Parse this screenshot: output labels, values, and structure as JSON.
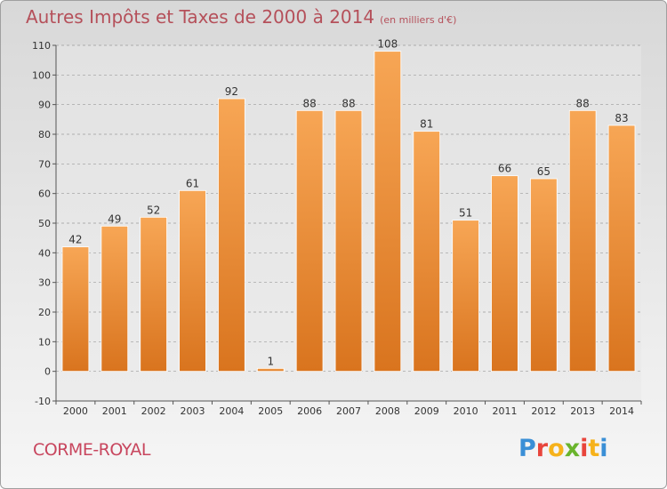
{
  "chart_data": {
    "type": "bar",
    "title": "Autres Impôts et Taxes de 2000 à 2014",
    "subtitle": "(en milliers d'€)",
    "categories": [
      "2000",
      "2001",
      "2002",
      "2003",
      "2004",
      "2005",
      "2006",
      "2007",
      "2008",
      "2009",
      "2010",
      "2011",
      "2012",
      "2013",
      "2014"
    ],
    "values": [
      42,
      49,
      52,
      61,
      92,
      1,
      88,
      88,
      108,
      81,
      51,
      66,
      65,
      88,
      83
    ],
    "ylim": [
      -10,
      110
    ],
    "yticks": [
      -10,
      0,
      10,
      20,
      30,
      40,
      50,
      60,
      70,
      80,
      90,
      100,
      110
    ],
    "grid": true,
    "bar_color": "#f39a3c"
  },
  "footer": {
    "commune": "CORME-ROYAL",
    "logo_letters": [
      "P",
      "r",
      "o",
      "x",
      "i",
      "t",
      "i"
    ],
    "logo_colors": [
      "#3a8fd6",
      "#e8453c",
      "#f6b21b",
      "#6ab42d",
      "#e8453c",
      "#f6b21b",
      "#3a8fd6"
    ]
  }
}
